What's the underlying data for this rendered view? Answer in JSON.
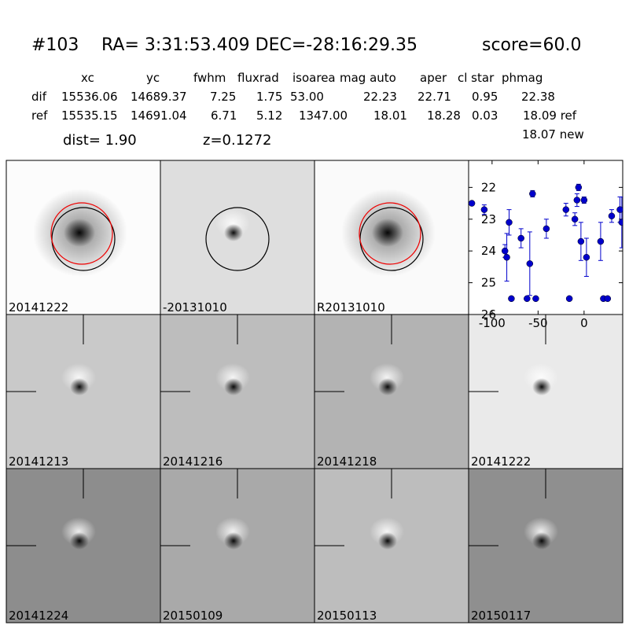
{
  "header": {
    "id": "#103",
    "coords": "RA= 3:31:53.409 DEC=-28:16:29.35",
    "score": "score=60.0",
    "columns": [
      "xc",
      "yc",
      "fwhm",
      "fluxrad",
      "isoarea",
      "mag auto",
      "aper",
      "cl star",
      "phmag"
    ],
    "rows": [
      {
        "label": "dif",
        "cells": [
          "15536.06",
          "14689.37",
          "7.25",
          "1.75",
          "53.00",
          "22.23",
          "22.71",
          "0.95",
          "22.38"
        ]
      },
      {
        "label": "ref",
        "cells": [
          "15535.15",
          "14691.04",
          "6.71",
          "5.12",
          "1347.00",
          "18.01",
          "18.28",
          "0.03",
          "18.09 ref"
        ]
      }
    ],
    "extra": "18.07 new",
    "dist": "dist=  1.90",
    "z": "z=0.1272"
  },
  "panels": [
    {
      "label": "20141222"
    },
    {
      "label": "-20131010"
    },
    {
      "label": "R20131010"
    },
    {
      "label": "20141213"
    },
    {
      "label": "20141216"
    },
    {
      "label": "20141218"
    },
    {
      "label": "20141222",
      "color": "#ff0000"
    },
    {
      "label": "20141224"
    },
    {
      "label": "20150109"
    },
    {
      "label": "20150113"
    },
    {
      "label": "20150117"
    }
  ],
  "chart_data": {
    "type": "scatter",
    "color": "#0000cc",
    "x": [
      -122,
      -108.5,
      -86,
      -84,
      -81.5,
      -79,
      -68.5,
      -62,
      -59,
      -56,
      -52.5,
      -41,
      -19.7,
      -16,
      -10,
      -7.7,
      -6,
      -3.4,
      0,
      2.6,
      18,
      21,
      25.6,
      30,
      39,
      41
    ],
    "values": [
      22.5,
      22.7,
      24.0,
      24.2,
      23.1,
      25.5,
      23.6,
      25.5,
      24.4,
      22.2,
      25.5,
      23.3,
      22.7,
      25.5,
      23.0,
      22.4,
      22.0,
      23.7,
      22.4,
      24.2,
      23.7,
      25.5,
      25.5,
      22.9,
      22.7,
      23.1
    ],
    "errors": [
      null,
      0.15,
      0.2,
      0.75,
      0.4,
      null,
      0.3,
      null,
      1.0,
      0.1,
      null,
      0.3,
      0.2,
      null,
      0.2,
      0.2,
      0.1,
      0.6,
      0.1,
      0.6,
      0.6,
      null,
      null,
      0.2,
      0.4,
      0.8
    ],
    "xlim": [
      -125.5,
      42
    ],
    "ylim": [
      26,
      21.15
    ],
    "xticks": [
      -100,
      -50,
      0
    ],
    "yticks": [
      22,
      23,
      24,
      25,
      26
    ]
  }
}
